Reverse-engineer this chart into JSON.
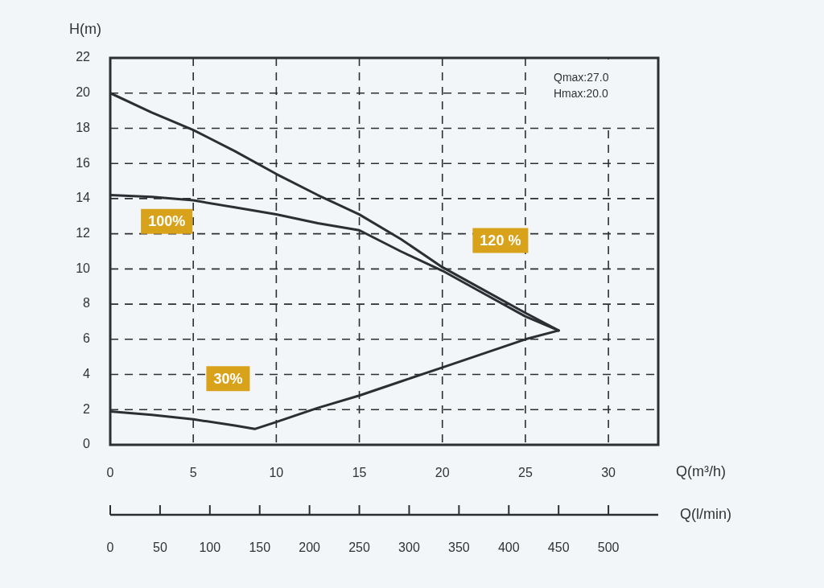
{
  "chart_data": {
    "type": "line",
    "xlabel": "Q(m³/h)",
    "ylabel": "H(m)",
    "x2label": "Q(l/min)",
    "annotations": [
      "Qmax:27.0",
      "Hmax:20.0"
    ],
    "xlim": [
      0,
      33
    ],
    "xticks": [
      0,
      5,
      10,
      15,
      20,
      25,
      30
    ],
    "x2lim": [
      0,
      550
    ],
    "x2ticks": [
      0,
      50,
      100,
      150,
      200,
      250,
      300,
      350,
      400,
      450,
      500
    ],
    "ylim": [
      0,
      22
    ],
    "yticks": [
      0,
      2,
      4,
      6,
      8,
      10,
      12,
      14,
      16,
      18,
      20,
      22
    ],
    "grid": true,
    "series": [
      {
        "name": "120 %",
        "color": "#2b2f33",
        "x": [
          0,
          2.5,
          5,
          7.5,
          10,
          12.5,
          15,
          17.5,
          20,
          22.5,
          25,
          27
        ],
        "values": [
          20.0,
          18.9,
          17.9,
          16.7,
          15.4,
          14.2,
          13.1,
          11.7,
          10.1,
          8.8,
          7.5,
          6.5
        ]
      },
      {
        "name": "100%",
        "color": "#2b2f33",
        "x": [
          0,
          2.5,
          5,
          7.5,
          10,
          12.5,
          15,
          17.5,
          20,
          22.5,
          25,
          27
        ],
        "values": [
          14.2,
          14.1,
          13.9,
          13.5,
          13.1,
          12.6,
          12.2,
          11.0,
          9.9,
          8.6,
          7.3,
          6.5
        ]
      },
      {
        "name": "30%",
        "color": "#2b2f33",
        "x": [
          0,
          2.5,
          5,
          7.5,
          8.7,
          10,
          12.5,
          15,
          17.5,
          20,
          22.5,
          25,
          27
        ],
        "values": [
          1.9,
          1.7,
          1.45,
          1.1,
          0.9,
          1.3,
          2.1,
          2.8,
          3.6,
          4.4,
          5.2,
          6.0,
          6.5
        ]
      }
    ]
  }
}
